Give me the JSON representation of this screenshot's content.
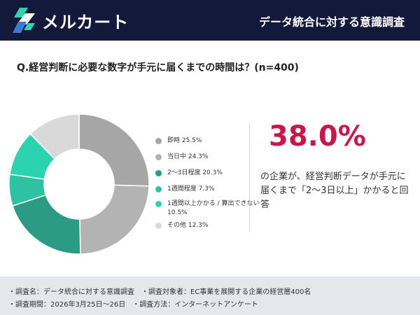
{
  "header": {
    "brand": "メルカート",
    "title": "データ統合に対する意識調査"
  },
  "question": "Q.経営判断に必要な数字が手元に届くまでの時間は？(n=400)",
  "chart_data": {
    "type": "pie",
    "categories": [
      "即時",
      "当日中",
      "2〜3日程度",
      "1週間程度",
      "1週間以上かかる / 算出できない",
      "その他"
    ],
    "values": [
      25.5,
      24.3,
      20.3,
      7.3,
      10.5,
      12.3
    ],
    "colors": [
      "#a6a6a6",
      "#b3b3b3",
      "#2b9b83",
      "#2ec2a2",
      "#2bd3b0",
      "#d9d9d9"
    ],
    "legend_labels": [
      "即時 25.5%",
      "当日中 24.3%",
      "2〜3日程度 20.3%",
      "1週間程度 7.3%",
      "1週間以上かかる / 算出できない 10.5%",
      "その他 12.3%"
    ],
    "legend_position": "right",
    "donut": true
  },
  "highlight": {
    "value": "38.0%",
    "description": "の企業が、経営判断データが手元に届くまで「2〜3日以上」かかると回答"
  },
  "footer": {
    "line1": "・調査名：データ統合に対する意識調査　・調査対象者：EC事業を展開する企業の経営層400名",
    "line2": "・調査期間：2026年3月25日〜26日　・調査方法：インターネットアンケート"
  },
  "colors": {
    "header_bg": "#13193a",
    "accent": "#c8174a",
    "footer_bg": "#e5e7ec"
  }
}
